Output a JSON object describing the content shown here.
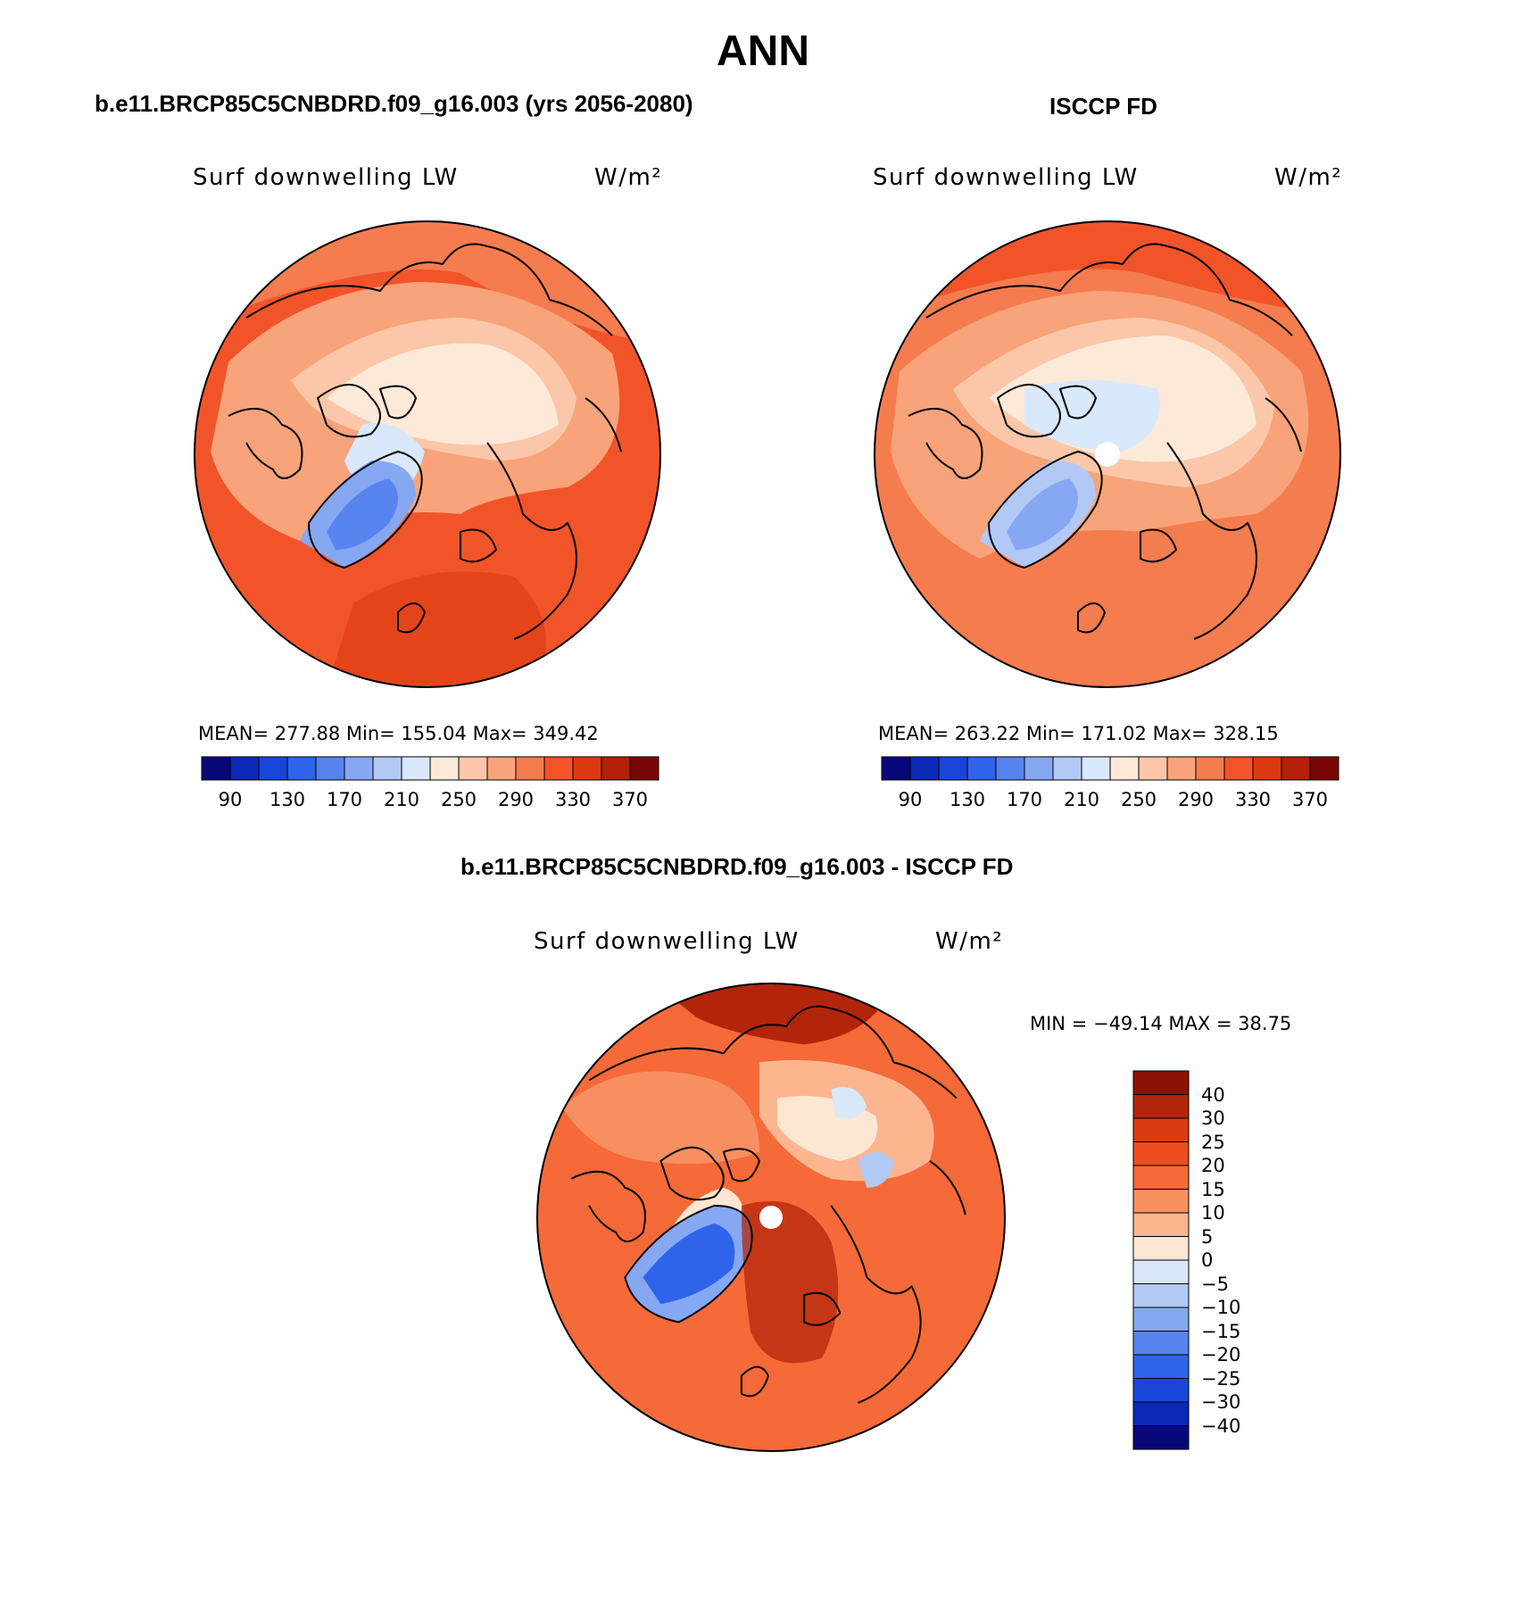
{
  "title": "ANN",
  "panels": {
    "model": {
      "case_title": "b.e11.BRCP85C5CNBDRD.f09_g16.003 (yrs 2056-2080)",
      "variable_label": "Surf downwelling LW",
      "units_label": "W/m²",
      "stats": "MEAN= 277.88   Min= 155.04   Max= 349.42",
      "mean": 277.88,
      "min": 155.04,
      "max": 349.42
    },
    "obs": {
      "case_title": "ISCCP FD",
      "variable_label": "Surf downwelling LW",
      "units_label": "W/m²",
      "stats": "MEAN= 263.22   Min= 171.02   Max= 328.15",
      "mean": 263.22,
      "min": 171.02,
      "max": 328.15
    },
    "diff": {
      "case_title": "b.e11.BRCP85C5CNBDRD.f09_g16.003 - ISCCP FD",
      "variable_label": "Surf downwelling LW",
      "units_label": "W/m²",
      "stats": "MIN = −49.14 MAX =   38.75",
      "min": -49.14,
      "max": 38.75
    }
  },
  "colorbars": {
    "absolute": {
      "tick_labels": [
        "90",
        "130",
        "170",
        "210",
        "250",
        "290",
        "330",
        "370"
      ],
      "colors": [
        "#08087a",
        "#0b2ab8",
        "#1746d8",
        "#2f63ea",
        "#5784ee",
        "#86a8f2",
        "#b2c9f6",
        "#d9e8fa",
        "#fde9d8",
        "#fbc7a8",
        "#f8a37a",
        "#f57c4f",
        "#f2542a",
        "#dc3a12",
        "#b4200a",
        "#7a0606"
      ]
    },
    "difference": {
      "tick_labels": [
        "40",
        "30",
        "25",
        "20",
        "15",
        "10",
        "5",
        "0",
        "−5",
        "−10",
        "−15",
        "−20",
        "−25",
        "−30",
        "−40"
      ],
      "colors_top_to_bottom": [
        "#8c1205",
        "#b3250a",
        "#dc3a12",
        "#ef4d1e",
        "#f56a38",
        "#f88f61",
        "#fbb690",
        "#fde6d2",
        "#d9e8fa",
        "#b2c9f6",
        "#86a8f2",
        "#5784ee",
        "#2f63ea",
        "#1746d8",
        "#0b2ab8",
        "#08087a"
      ]
    }
  },
  "map_colors": {
    "ocean_warm": "#f2542a",
    "land_mid": "#f8a37a",
    "land_light": "#fde9d8",
    "greenland": "#5784ee",
    "coast": "#000000"
  }
}
